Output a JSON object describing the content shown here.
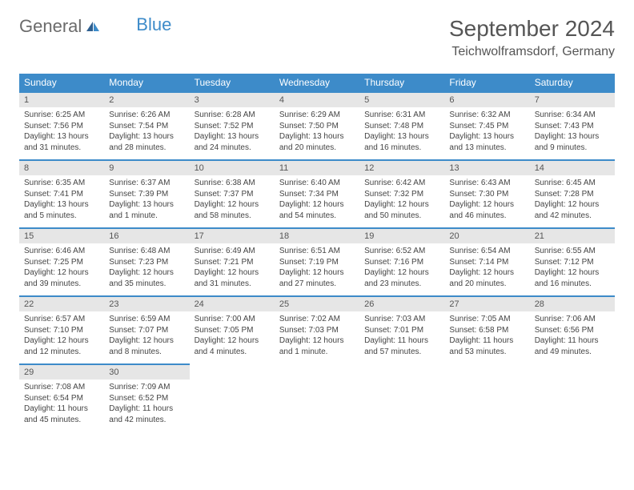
{
  "brand": {
    "part1": "General",
    "part2": "Blue"
  },
  "title": "September 2024",
  "location": "Teichwolframsdorf, Germany",
  "colors": {
    "header_bg": "#3d8bc9",
    "header_text": "#ffffff",
    "daynum_bg": "#e6e6e6",
    "text": "#444444",
    "border": "#3d8bc9"
  },
  "weekdays": [
    "Sunday",
    "Monday",
    "Tuesday",
    "Wednesday",
    "Thursday",
    "Friday",
    "Saturday"
  ],
  "days": [
    {
      "num": "1",
      "sunrise": "Sunrise: 6:25 AM",
      "sunset": "Sunset: 7:56 PM",
      "daylight": "Daylight: 13 hours and 31 minutes."
    },
    {
      "num": "2",
      "sunrise": "Sunrise: 6:26 AM",
      "sunset": "Sunset: 7:54 PM",
      "daylight": "Daylight: 13 hours and 28 minutes."
    },
    {
      "num": "3",
      "sunrise": "Sunrise: 6:28 AM",
      "sunset": "Sunset: 7:52 PM",
      "daylight": "Daylight: 13 hours and 24 minutes."
    },
    {
      "num": "4",
      "sunrise": "Sunrise: 6:29 AM",
      "sunset": "Sunset: 7:50 PM",
      "daylight": "Daylight: 13 hours and 20 minutes."
    },
    {
      "num": "5",
      "sunrise": "Sunrise: 6:31 AM",
      "sunset": "Sunset: 7:48 PM",
      "daylight": "Daylight: 13 hours and 16 minutes."
    },
    {
      "num": "6",
      "sunrise": "Sunrise: 6:32 AM",
      "sunset": "Sunset: 7:45 PM",
      "daylight": "Daylight: 13 hours and 13 minutes."
    },
    {
      "num": "7",
      "sunrise": "Sunrise: 6:34 AM",
      "sunset": "Sunset: 7:43 PM",
      "daylight": "Daylight: 13 hours and 9 minutes."
    },
    {
      "num": "8",
      "sunrise": "Sunrise: 6:35 AM",
      "sunset": "Sunset: 7:41 PM",
      "daylight": "Daylight: 13 hours and 5 minutes."
    },
    {
      "num": "9",
      "sunrise": "Sunrise: 6:37 AM",
      "sunset": "Sunset: 7:39 PM",
      "daylight": "Daylight: 13 hours and 1 minute."
    },
    {
      "num": "10",
      "sunrise": "Sunrise: 6:38 AM",
      "sunset": "Sunset: 7:37 PM",
      "daylight": "Daylight: 12 hours and 58 minutes."
    },
    {
      "num": "11",
      "sunrise": "Sunrise: 6:40 AM",
      "sunset": "Sunset: 7:34 PM",
      "daylight": "Daylight: 12 hours and 54 minutes."
    },
    {
      "num": "12",
      "sunrise": "Sunrise: 6:42 AM",
      "sunset": "Sunset: 7:32 PM",
      "daylight": "Daylight: 12 hours and 50 minutes."
    },
    {
      "num": "13",
      "sunrise": "Sunrise: 6:43 AM",
      "sunset": "Sunset: 7:30 PM",
      "daylight": "Daylight: 12 hours and 46 minutes."
    },
    {
      "num": "14",
      "sunrise": "Sunrise: 6:45 AM",
      "sunset": "Sunset: 7:28 PM",
      "daylight": "Daylight: 12 hours and 42 minutes."
    },
    {
      "num": "15",
      "sunrise": "Sunrise: 6:46 AM",
      "sunset": "Sunset: 7:25 PM",
      "daylight": "Daylight: 12 hours and 39 minutes."
    },
    {
      "num": "16",
      "sunrise": "Sunrise: 6:48 AM",
      "sunset": "Sunset: 7:23 PM",
      "daylight": "Daylight: 12 hours and 35 minutes."
    },
    {
      "num": "17",
      "sunrise": "Sunrise: 6:49 AM",
      "sunset": "Sunset: 7:21 PM",
      "daylight": "Daylight: 12 hours and 31 minutes."
    },
    {
      "num": "18",
      "sunrise": "Sunrise: 6:51 AM",
      "sunset": "Sunset: 7:19 PM",
      "daylight": "Daylight: 12 hours and 27 minutes."
    },
    {
      "num": "19",
      "sunrise": "Sunrise: 6:52 AM",
      "sunset": "Sunset: 7:16 PM",
      "daylight": "Daylight: 12 hours and 23 minutes."
    },
    {
      "num": "20",
      "sunrise": "Sunrise: 6:54 AM",
      "sunset": "Sunset: 7:14 PM",
      "daylight": "Daylight: 12 hours and 20 minutes."
    },
    {
      "num": "21",
      "sunrise": "Sunrise: 6:55 AM",
      "sunset": "Sunset: 7:12 PM",
      "daylight": "Daylight: 12 hours and 16 minutes."
    },
    {
      "num": "22",
      "sunrise": "Sunrise: 6:57 AM",
      "sunset": "Sunset: 7:10 PM",
      "daylight": "Daylight: 12 hours and 12 minutes."
    },
    {
      "num": "23",
      "sunrise": "Sunrise: 6:59 AM",
      "sunset": "Sunset: 7:07 PM",
      "daylight": "Daylight: 12 hours and 8 minutes."
    },
    {
      "num": "24",
      "sunrise": "Sunrise: 7:00 AM",
      "sunset": "Sunset: 7:05 PM",
      "daylight": "Daylight: 12 hours and 4 minutes."
    },
    {
      "num": "25",
      "sunrise": "Sunrise: 7:02 AM",
      "sunset": "Sunset: 7:03 PM",
      "daylight": "Daylight: 12 hours and 1 minute."
    },
    {
      "num": "26",
      "sunrise": "Sunrise: 7:03 AM",
      "sunset": "Sunset: 7:01 PM",
      "daylight": "Daylight: 11 hours and 57 minutes."
    },
    {
      "num": "27",
      "sunrise": "Sunrise: 7:05 AM",
      "sunset": "Sunset: 6:58 PM",
      "daylight": "Daylight: 11 hours and 53 minutes."
    },
    {
      "num": "28",
      "sunrise": "Sunrise: 7:06 AM",
      "sunset": "Sunset: 6:56 PM",
      "daylight": "Daylight: 11 hours and 49 minutes."
    },
    {
      "num": "29",
      "sunrise": "Sunrise: 7:08 AM",
      "sunset": "Sunset: 6:54 PM",
      "daylight": "Daylight: 11 hours and 45 minutes."
    },
    {
      "num": "30",
      "sunrise": "Sunrise: 7:09 AM",
      "sunset": "Sunset: 6:52 PM",
      "daylight": "Daylight: 11 hours and 42 minutes."
    }
  ]
}
